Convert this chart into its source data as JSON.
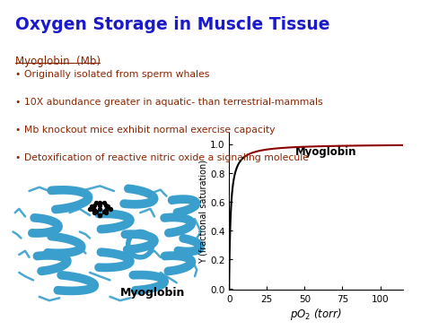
{
  "title": "Oxygen Storage in Muscle Tissue",
  "title_color": "#1a1acc",
  "title_fontsize": 13.5,
  "title_fontweight": "bold",
  "subtitle": "Myoglobin  (Mb)",
  "subtitle_color": "#8b2500",
  "subtitle_fontsize": 8.5,
  "bullet_points": [
    "• Originally isolated from sperm whales",
    "• 10X abundance greater in aquatic- than terrestrial-mammals",
    "• Mb knockout mice exhibit normal exercise capacity",
    "• Detoxification of reactive nitric oxide a signaling molecule"
  ],
  "bullet_color": "#8b2500",
  "bullet_fontsize": 7.8,
  "curve_label": "Myoglobin",
  "curve_color": "#000000",
  "curve_top_color": "#8b0000",
  "xlabel": "$pO_2$ (torr)",
  "ylabel": "Y (fractional saturation)",
  "xticks": [
    0,
    25,
    50,
    75,
    100
  ],
  "yticks": [
    0.0,
    0.2,
    0.4,
    0.6,
    0.8,
    1.0
  ],
  "xlim": [
    0,
    115
  ],
  "ylim": [
    -0.01,
    1.08
  ],
  "Kd_mb": 1.0,
  "bg_color": "#ffffff",
  "protein_label": "Myoglobin",
  "protein_label_fontsize": 9,
  "protein_label_fontweight": "bold",
  "blue_ribbon": "#3a9fcc",
  "blue_ribbon_dark": "#1e6fa0",
  "ribbon_lw": 7.0
}
